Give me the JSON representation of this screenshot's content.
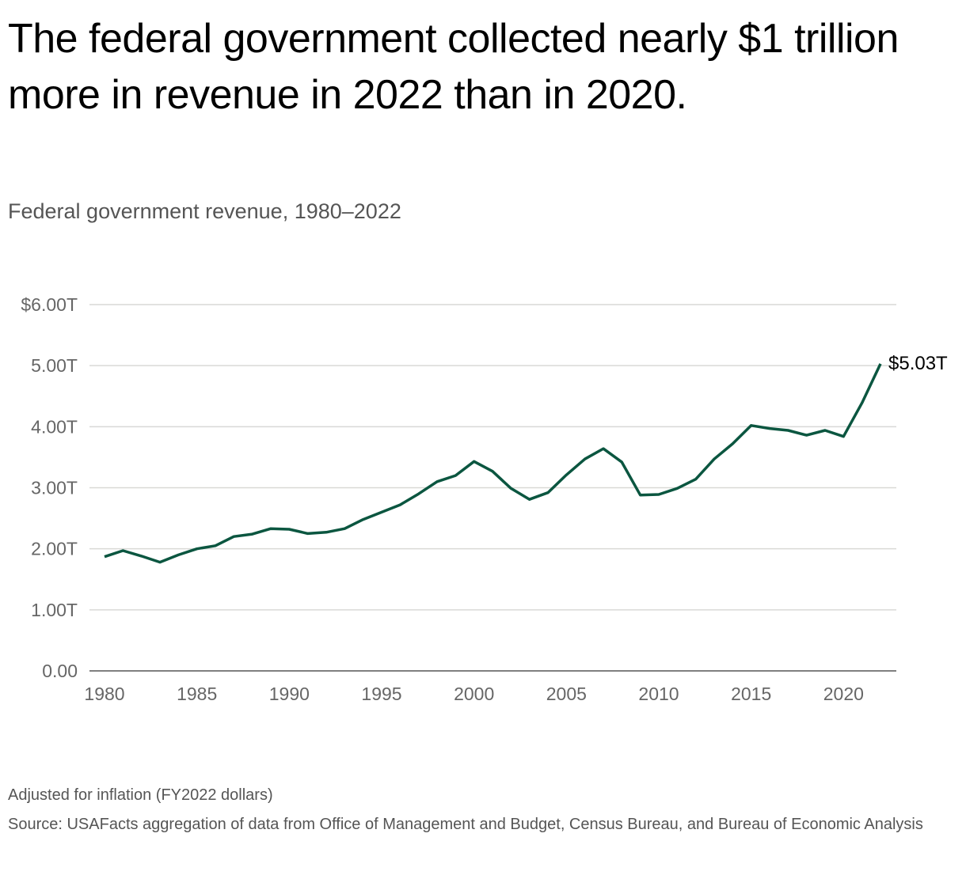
{
  "title": "The federal government collected nearly $1 trillion more in revenue in 2022 than in 2020.",
  "subtitle": "Federal government revenue, 1980–2022",
  "notes": {
    "adjustment": "Adjusted for inflation (FY2022 dollars)",
    "source": "Source: USAFacts aggregation of data from Office of Management and Budget, Census Bureau, and Bureau of Economic Analysis"
  },
  "chart_data": {
    "type": "line",
    "title": "Federal government revenue, 1980–2022",
    "xlabel": "",
    "ylabel": "",
    "ylim": [
      0,
      6
    ],
    "xlim": [
      1980,
      2022
    ],
    "grid": true,
    "line_color": "#0b5640",
    "y_ticks": [
      {
        "v": 0,
        "label": "0.00"
      },
      {
        "v": 1,
        "label": "1.00T"
      },
      {
        "v": 2,
        "label": "2.00T"
      },
      {
        "v": 3,
        "label": "3.00T"
      },
      {
        "v": 4,
        "label": "4.00T"
      },
      {
        "v": 5,
        "label": "5.00T"
      },
      {
        "v": 6,
        "label": "$6.00T"
      }
    ],
    "x_ticks": [
      1980,
      1985,
      1990,
      1995,
      2000,
      2005,
      2010,
      2015,
      2020
    ],
    "end_label": "$5.03T",
    "x": [
      1980,
      1981,
      1982,
      1983,
      1984,
      1985,
      1986,
      1987,
      1988,
      1989,
      1990,
      1991,
      1992,
      1993,
      1994,
      1995,
      1996,
      1997,
      1998,
      1999,
      2000,
      2001,
      2002,
      2003,
      2004,
      2005,
      2006,
      2007,
      2008,
      2009,
      2010,
      2011,
      2012,
      2013,
      2014,
      2015,
      2016,
      2017,
      2018,
      2019,
      2020,
      2021,
      2022
    ],
    "values": [
      1.87,
      1.97,
      1.88,
      1.78,
      1.9,
      2.0,
      2.05,
      2.2,
      2.24,
      2.33,
      2.32,
      2.25,
      2.27,
      2.33,
      2.48,
      2.6,
      2.72,
      2.9,
      3.1,
      3.2,
      3.43,
      3.27,
      2.99,
      2.81,
      2.92,
      3.21,
      3.47,
      3.64,
      3.42,
      2.88,
      2.89,
      2.99,
      3.14,
      3.47,
      3.72,
      4.02,
      3.97,
      3.94,
      3.86,
      3.94,
      3.84,
      4.39,
      5.03
    ]
  }
}
